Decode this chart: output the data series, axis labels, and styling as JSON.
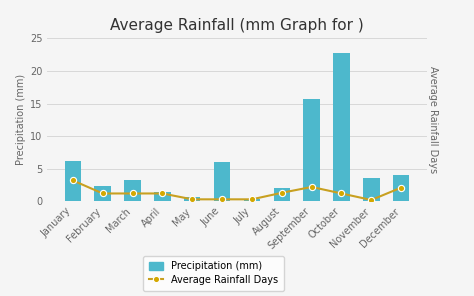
{
  "title": "Average Rainfall (mm Graph for )",
  "months": [
    "January",
    "February",
    "March",
    "April",
    "May",
    "June",
    "July",
    "August",
    "September",
    "October",
    "November",
    "December"
  ],
  "precipitation": [
    6.2,
    2.3,
    3.2,
    1.5,
    0.6,
    6.1,
    0.4,
    2.1,
    15.7,
    22.8,
    3.5,
    4.0
  ],
  "rainfall_days": [
    3.2,
    1.2,
    1.2,
    1.2,
    0.3,
    0.3,
    0.3,
    1.3,
    2.2,
    1.2,
    0.2,
    2.1
  ],
  "bar_color": "#4db8cc",
  "line_color": "#c8a020",
  "marker_color": "#d4a800",
  "marker_edge": "#ffffff",
  "ylabel_left": "Precipitation (mm)",
  "ylabel_right": "Average Rainfall Days",
  "ylim": [
    0,
    25
  ],
  "yticks": [
    0,
    5,
    10,
    15,
    20,
    25
  ],
  "background_color": "#f5f5f5",
  "grid_color": "#d8d8d8",
  "legend_labels": [
    "Precipitation (mm)",
    "Average Rainfall Days"
  ],
  "title_fontsize": 11,
  "axis_label_fontsize": 7,
  "tick_fontsize": 7
}
